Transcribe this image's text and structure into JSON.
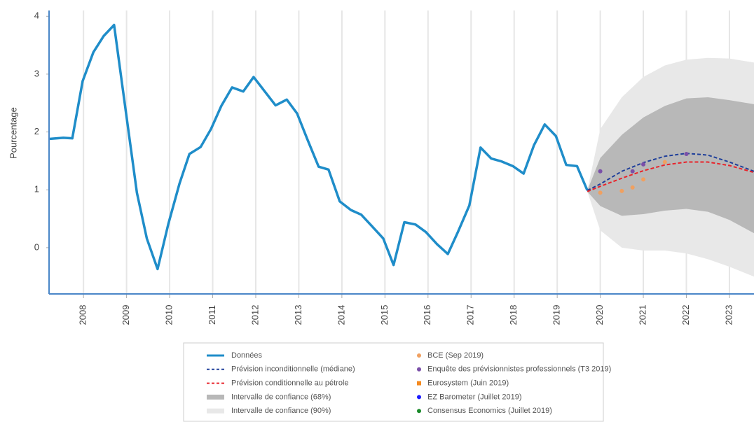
{
  "chart_data": {
    "type": "line",
    "ylabel": "Pourcentage",
    "xlim": [
      2007.2,
      2023.57
    ],
    "ylim": [
      -0.8,
      4.1
    ],
    "yticks": [
      0,
      1,
      2,
      3,
      4
    ],
    "xticks": [
      2008,
      2009,
      2010,
      2011,
      2012,
      2013,
      2014,
      2015,
      2016,
      2017,
      2018,
      2019,
      2020,
      2021,
      2022,
      2023
    ],
    "xgrid": true,
    "series": [
      {
        "name": "Données",
        "color": "#1f8dc9",
        "style": "line",
        "x": [
          2007.2,
          2007.53,
          2007.74,
          2007.98,
          2008.23,
          2008.47,
          2008.71,
          2009.0,
          2009.24,
          2009.47,
          2009.72,
          2009.97,
          2010.23,
          2010.46,
          2010.72,
          2010.96,
          2011.2,
          2011.45,
          2011.71,
          2011.95,
          2012.2,
          2012.46,
          2012.72,
          2012.96,
          2013.2,
          2013.46,
          2013.69,
          2013.95,
          2014.21,
          2014.45,
          2014.7,
          2014.96,
          2015.2,
          2015.45,
          2015.71,
          2015.95,
          2016.21,
          2016.46,
          2016.7,
          2016.96,
          2017.22,
          2017.47,
          2017.71,
          2017.97,
          2018.22,
          2018.46,
          2018.71,
          2018.97,
          2019.21,
          2019.46,
          2019.7
        ],
        "values": [
          1.88,
          1.9,
          1.89,
          2.88,
          3.38,
          3.66,
          3.85,
          2.26,
          0.95,
          0.16,
          -0.37,
          0.41,
          1.11,
          1.62,
          1.74,
          2.05,
          2.45,
          2.77,
          2.7,
          2.95,
          2.71,
          2.46,
          2.56,
          2.32,
          1.87,
          1.4,
          1.35,
          0.8,
          0.65,
          0.57,
          0.37,
          0.16,
          -0.3,
          0.44,
          0.4,
          0.27,
          0.06,
          -0.11,
          0.28,
          0.73,
          1.73,
          1.54,
          1.49,
          1.41,
          1.28,
          1.77,
          2.13,
          1.93,
          1.43,
          1.41,
          0.99
        ]
      },
      {
        "name": "Prévision inconditionnelle (médiane)",
        "color": "#1f3f9a",
        "style": "dashed",
        "x": [
          2019.7,
          2020,
          2020.5,
          2021,
          2021.5,
          2022,
          2022.5,
          2023,
          2023.57
        ],
        "values": [
          0.99,
          1.1,
          1.32,
          1.47,
          1.58,
          1.63,
          1.6,
          1.48,
          1.32
        ]
      },
      {
        "name": "Prévision conditionnelle au pétrole",
        "color": "#e8232a",
        "style": "dashed",
        "x": [
          2019.7,
          2020,
          2020.5,
          2021,
          2021.5,
          2022,
          2022.5,
          2023,
          2023.57
        ],
        "values": [
          0.97,
          1.06,
          1.2,
          1.33,
          1.43,
          1.48,
          1.48,
          1.42,
          1.3
        ]
      },
      {
        "name": "Intervalle de confiance (68%)",
        "color": "#b8b8b8",
        "style": "band",
        "x": [
          2019.7,
          2020,
          2020.5,
          2021,
          2021.5,
          2022,
          2022.5,
          2023,
          2023.57
        ],
        "lower": [
          0.97,
          0.72,
          0.55,
          0.58,
          0.64,
          0.67,
          0.62,
          0.48,
          0.25
        ],
        "upper": [
          0.99,
          1.55,
          1.95,
          2.25,
          2.45,
          2.58,
          2.6,
          2.55,
          2.48
        ]
      },
      {
        "name": "Intervalle de confiance (90%)",
        "color": "#e8e8e8",
        "style": "band",
        "x": [
          2019.7,
          2020,
          2020.5,
          2021,
          2021.5,
          2022,
          2022.5,
          2023,
          2023.57
        ],
        "lower": [
          0.97,
          0.3,
          0.0,
          -0.05,
          -0.05,
          -0.1,
          -0.2,
          -0.33,
          -0.5
        ],
        "upper": [
          0.99,
          2.05,
          2.6,
          2.95,
          3.15,
          3.25,
          3.28,
          3.27,
          3.2
        ]
      },
      {
        "name": "BCE (Sep 2019)",
        "color": "#f0a060",
        "style": "marker",
        "marker": "circle",
        "x": [
          2020,
          2020.5,
          2020.75,
          2021,
          2021.5
        ],
        "values": [
          0.95,
          0.98,
          1.04,
          1.18,
          1.48
        ]
      },
      {
        "name": "Enquête des prévisionnistes professionnels (T3 2019)",
        "color": "#7a4fa8",
        "style": "marker",
        "marker": "circle",
        "x": [
          2020,
          2020.75,
          2021,
          2022
        ],
        "values": [
          1.32,
          1.32,
          1.44,
          1.62
        ]
      },
      {
        "name": "Eurosystem (Juin 2019)",
        "color": "#f58a1f",
        "style": "marker",
        "marker": "square",
        "x": [],
        "values": []
      },
      {
        "name": "EZ Barometer (Juillet 2019)",
        "color": "#1a1aff",
        "style": "marker",
        "marker": "circle",
        "x": [],
        "values": []
      },
      {
        "name": "Consensus Economics (Juillet 2019)",
        "color": "#1a8a2a",
        "style": "marker",
        "marker": "circle",
        "x": [],
        "values": []
      }
    ]
  }
}
